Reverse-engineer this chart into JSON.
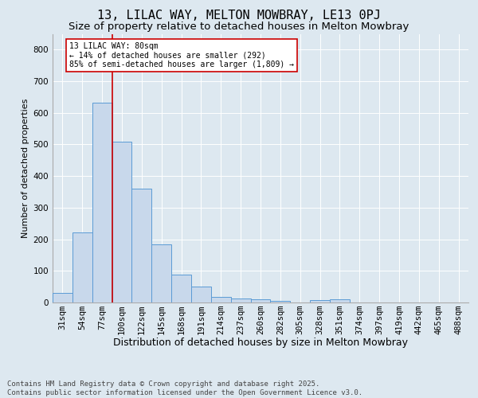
{
  "title1": "13, LILAC WAY, MELTON MOWBRAY, LE13 0PJ",
  "title2": "Size of property relative to detached houses in Melton Mowbray",
  "xlabel": "Distribution of detached houses by size in Melton Mowbray",
  "ylabel": "Number of detached properties",
  "categories": [
    "31sqm",
    "54sqm",
    "77sqm",
    "100sqm",
    "122sqm",
    "145sqm",
    "168sqm",
    "191sqm",
    "214sqm",
    "237sqm",
    "260sqm",
    "282sqm",
    "305sqm",
    "328sqm",
    "351sqm",
    "374sqm",
    "397sqm",
    "419sqm",
    "442sqm",
    "465sqm",
    "488sqm"
  ],
  "values": [
    30,
    222,
    632,
    510,
    360,
    185,
    88,
    50,
    18,
    13,
    10,
    5,
    0,
    8,
    10,
    0,
    0,
    0,
    0,
    0,
    0
  ],
  "bar_color": "#c8d8eb",
  "bar_edge_color": "#5b9bd5",
  "vline_color": "#cc0000",
  "annotation_text": "13 LILAC WAY: 80sqm\n← 14% of detached houses are smaller (292)\n85% of semi-detached houses are larger (1,809) →",
  "annotation_box_color": "#ffffff",
  "annotation_box_edge": "#cc0000",
  "ylim": [
    0,
    850
  ],
  "yticks": [
    0,
    100,
    200,
    300,
    400,
    500,
    600,
    700,
    800
  ],
  "background_color": "#dde8f0",
  "plot_background": "#dde8f0",
  "footer": "Contains HM Land Registry data © Crown copyright and database right 2025.\nContains public sector information licensed under the Open Government Licence v3.0.",
  "title1_fontsize": 11,
  "title2_fontsize": 9.5,
  "xlabel_fontsize": 9,
  "ylabel_fontsize": 8,
  "tick_fontsize": 7.5,
  "footer_fontsize": 6.5,
  "grid_color": "#ffffff",
  "spine_color": "#aaaaaa"
}
